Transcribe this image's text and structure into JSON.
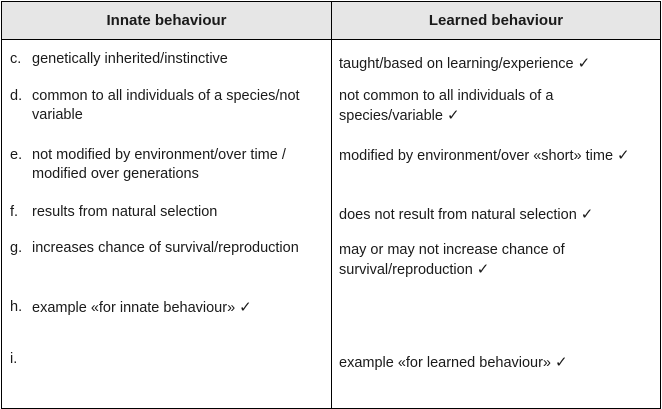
{
  "table": {
    "headers": {
      "innate": "Innate behaviour",
      "learned": "Learned behaviour"
    },
    "tick_symbol": "✓",
    "rows": [
      {
        "letter": "c.",
        "innate": "genetically inherited/instinctive",
        "innate_tick": false,
        "learned": "taught/based on learning/experience",
        "learned_tick": true
      },
      {
        "letter": "d.",
        "innate": "common to all individuals of a species/not variable",
        "innate_tick": false,
        "learned": "not common to all individuals of a species/variable",
        "learned_tick": true
      },
      {
        "letter": "e.",
        "innate": "not modified by environment/over time / modified over generations",
        "innate_tick": false,
        "learned": "modified by environment/over «short» time",
        "learned_tick": true
      },
      {
        "letter": "f.",
        "innate": "results from natural selection",
        "innate_tick": false,
        "learned": "does not result from natural selection",
        "learned_tick": true
      },
      {
        "letter": "g.",
        "innate": "increases chance of survival/reproduction",
        "innate_tick": false,
        "learned": "may or may not increase chance of survival/reproduction",
        "learned_tick": true
      },
      {
        "letter": "h.",
        "innate": "example «for innate behaviour»",
        "innate_tick": true,
        "learned": "",
        "learned_tick": false
      },
      {
        "letter": "i.",
        "innate": "",
        "innate_tick": false,
        "learned": "example «for learned behaviour»",
        "learned_tick": true
      }
    ]
  }
}
